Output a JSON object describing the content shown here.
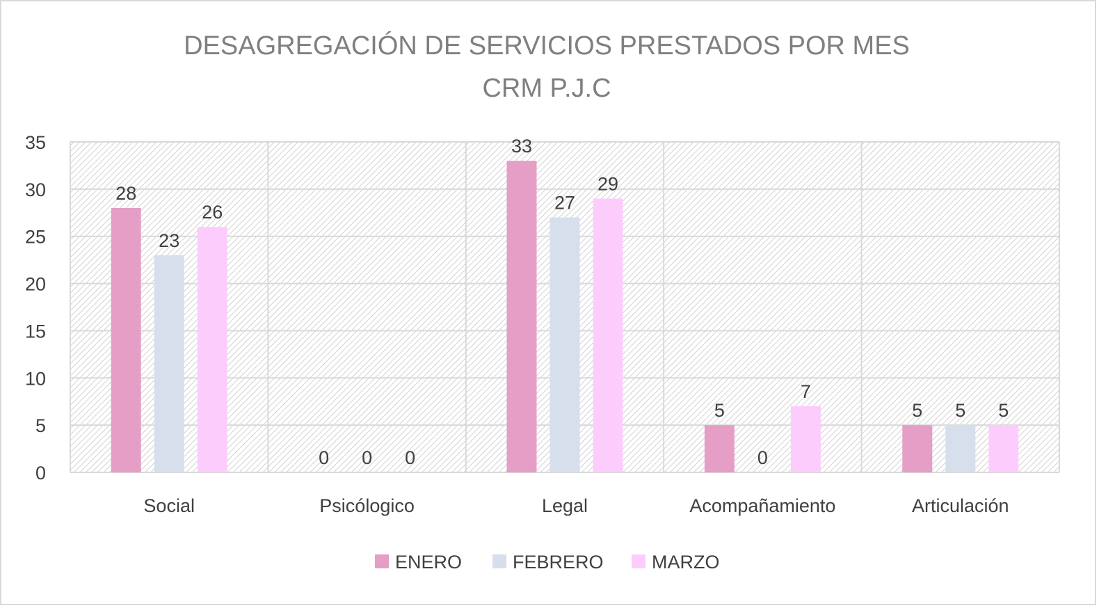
{
  "chart_data": {
    "type": "bar",
    "title": "DESAGREGACIÓN DE SERVICIOS PRESTADOS POR MES",
    "subtitle": "CRM P.J.C",
    "categories": [
      "Social",
      "Psicólogico",
      "Legal",
      "Acompañamiento",
      "Articulación"
    ],
    "series": [
      {
        "name": "ENERO",
        "color": "#e59ec5",
        "values": [
          28,
          0,
          33,
          5,
          5
        ]
      },
      {
        "name": "FEBRERO",
        "color": "#d6dfeb",
        "values": [
          23,
          0,
          27,
          0,
          5
        ]
      },
      {
        "name": "MARZO",
        "color": "#fccdfc",
        "values": [
          26,
          0,
          29,
          7,
          5
        ]
      }
    ],
    "ylim": [
      0,
      35
    ],
    "yticks": [
      0,
      5,
      10,
      15,
      20,
      25,
      30,
      35
    ],
    "xlabel": "",
    "ylabel": "",
    "grid": true,
    "legend": "bottom",
    "data_labels": true
  }
}
